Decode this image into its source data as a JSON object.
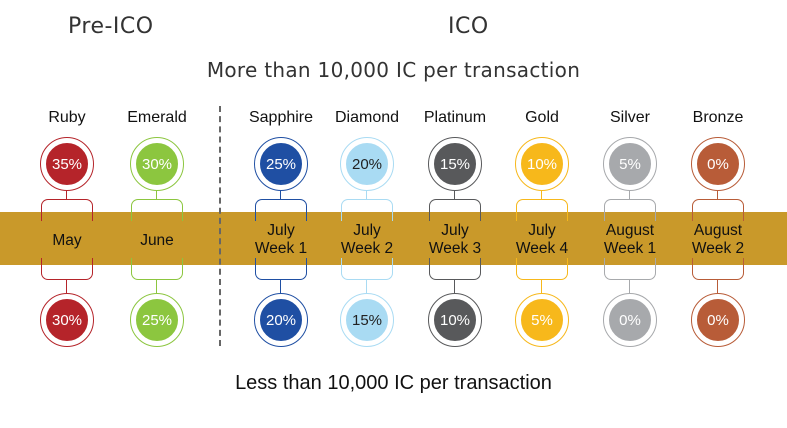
{
  "phases": {
    "pre_ico": "Pre-ICO",
    "ico": "ICO"
  },
  "top_caption": "More than 10,000 IC per transaction",
  "bottom_caption": "Less than 10,000 IC per transaction",
  "band_color": "#c9992a",
  "tiers": [
    {
      "name": "Ruby",
      "color": "#b5242a",
      "top": "35%",
      "date1": "May",
      "date2": "",
      "bottom": "30%",
      "bottom_color": "#b5242a"
    },
    {
      "name": "Emerald",
      "color": "#8cc63f",
      "top": "30%",
      "date1": "June",
      "date2": "",
      "bottom": "25%",
      "bottom_color": "#8cc63f"
    },
    {
      "name": "Sapphire",
      "color": "#1f4fa3",
      "top": "25%",
      "date1": "July",
      "date2": "Week 1",
      "bottom": "20%",
      "bottom_color": "#1f4fa3"
    },
    {
      "name": "Diamond",
      "color": "#a9dbf3",
      "top": "20%",
      "date1": "July",
      "date2": "Week 2",
      "bottom": "15%",
      "bottom_color": "#a9dbf3",
      "text_color": "#222"
    },
    {
      "name": "Platinum",
      "color": "#58595b",
      "top": "15%",
      "date1": "July",
      "date2": "Week 3",
      "bottom": "10%",
      "bottom_color": "#58595b"
    },
    {
      "name": "Gold",
      "color": "#f7b81b",
      "top": "10%",
      "date1": "July",
      "date2": "Week 4",
      "bottom": "5%",
      "bottom_color": "#f7b81b"
    },
    {
      "name": "Silver",
      "color": "#a7a9ac",
      "top": "5%",
      "date1": "August",
      "date2": "Week 1",
      "bottom": "0%",
      "bottom_color": "#a7a9ac"
    },
    {
      "name": "Bronze",
      "color": "#b85c38",
      "top": "0%",
      "date1": "August",
      "date2": "Week 2",
      "bottom": "0%",
      "bottom_color": "#b85c38"
    }
  ]
}
